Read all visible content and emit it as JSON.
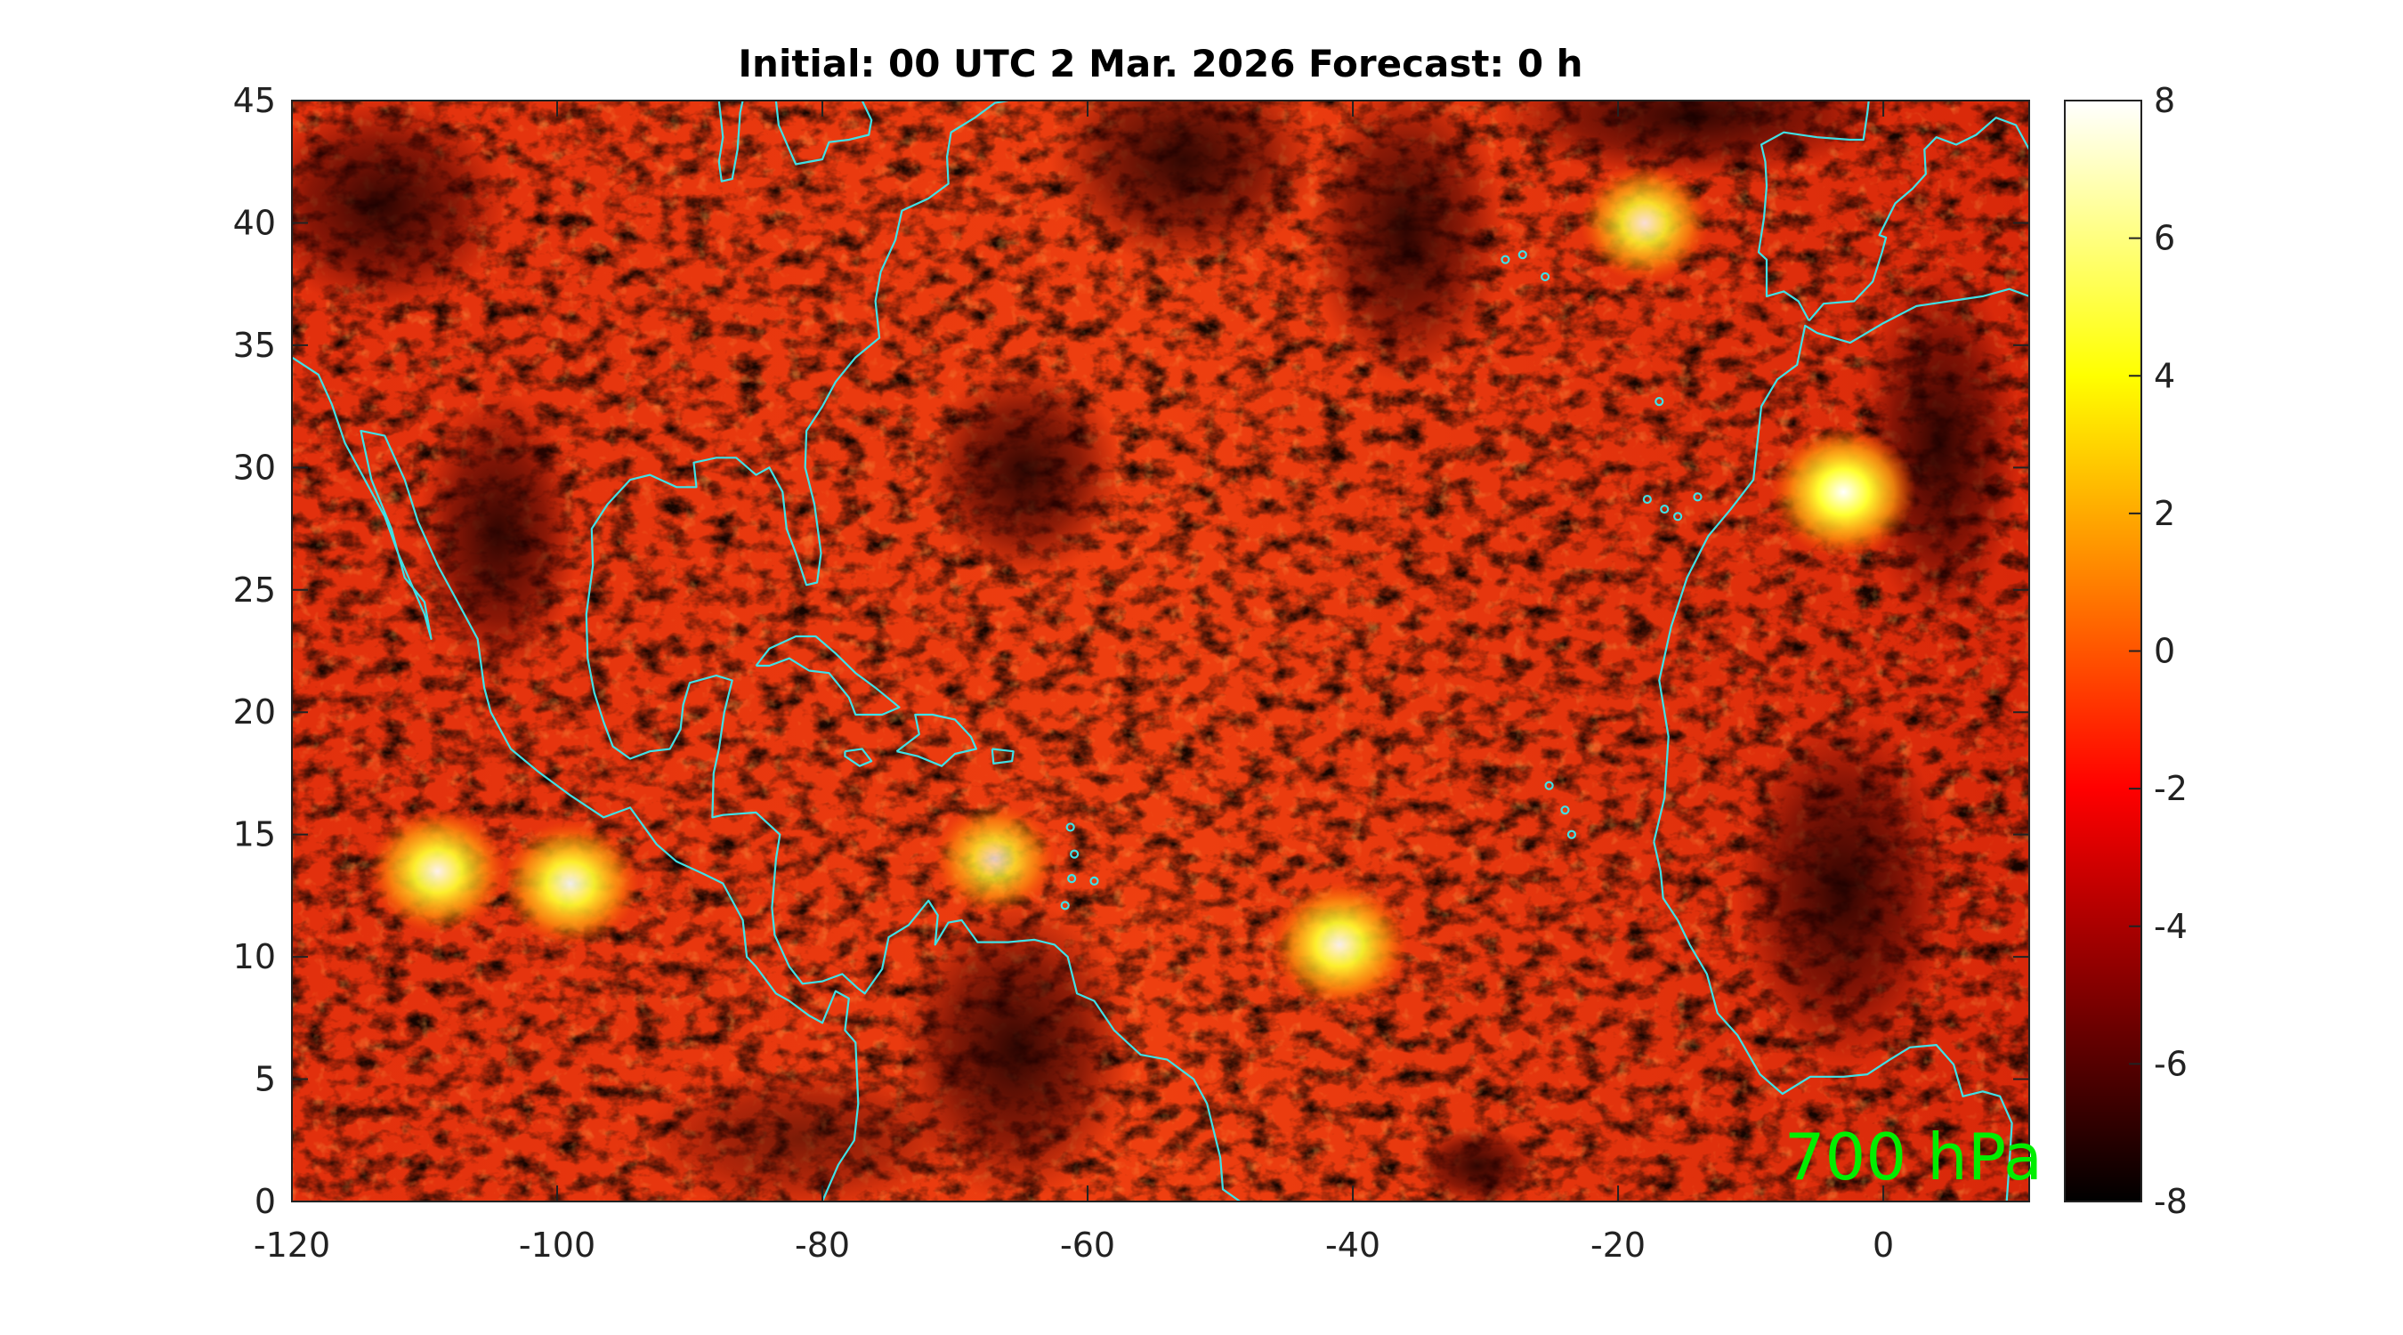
{
  "chart_data": {
    "type": "heatmap",
    "title": "Initial: 00 UTC 2 Mar. 2026 Forecast: 0 h",
    "annotation": "700 hPa",
    "annotation_color": "#00ee00",
    "coastline_color": "#40e0e6",
    "colormap": "hot",
    "xlim": [
      -120,
      11
    ],
    "ylim": [
      0,
      45
    ],
    "x_ticks": [
      -120,
      -100,
      -80,
      -60,
      -40,
      -20,
      0
    ],
    "x_tick_labels": [
      "-120",
      "-100",
      "-80",
      "-60",
      "-40",
      "-20",
      "0"
    ],
    "y_ticks": [
      0,
      5,
      10,
      15,
      20,
      25,
      30,
      35,
      40,
      45
    ],
    "y_tick_labels": [
      "0",
      "5",
      "10",
      "15",
      "20",
      "25",
      "30",
      "35",
      "40",
      "45"
    ],
    "colorbar": {
      "range": [
        -8,
        8
      ],
      "ticks": [
        8,
        6,
        4,
        2,
        0,
        -2,
        -4,
        -6,
        -8
      ],
      "tick_labels": [
        "8",
        "6",
        "4",
        "2",
        "0",
        "-2",
        "-4",
        "-6",
        "-8"
      ]
    },
    "features": [
      {
        "name": "hotspot-portugal-west",
        "x": -3,
        "y": 29,
        "value": 6
      },
      {
        "name": "hotspot-central-atlantic",
        "x": -41,
        "y": 10.5,
        "value": 5
      },
      {
        "name": "hotspot-pacific-west",
        "x": -109,
        "y": 13.5,
        "value": 5
      },
      {
        "name": "hotspot-pacific-central",
        "x": -99,
        "y": 13,
        "value": 5
      },
      {
        "name": "hotspot-north-east-atlantic",
        "x": -18,
        "y": 40,
        "value": 4
      },
      {
        "name": "hotspot-caribbean",
        "x": -67,
        "y": 14,
        "value": 3
      }
    ]
  }
}
